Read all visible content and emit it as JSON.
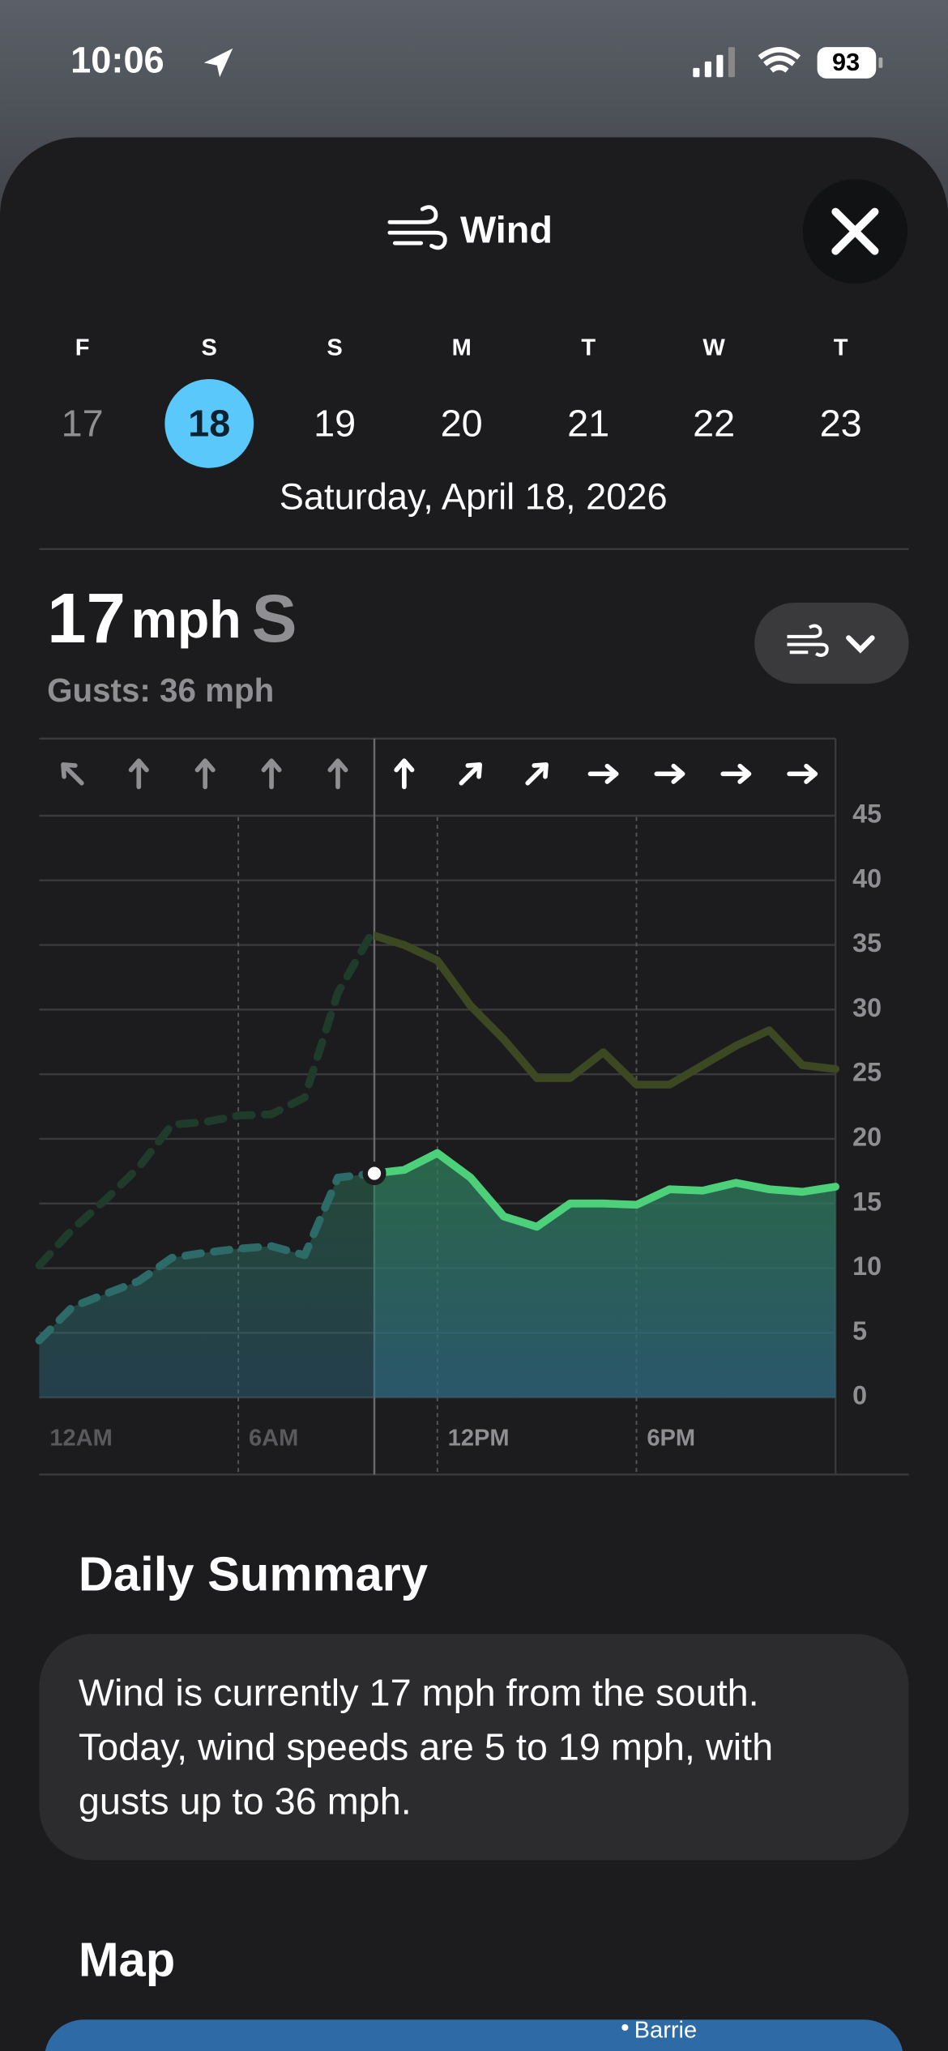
{
  "status_bar": {
    "time": "10:06",
    "battery": "93"
  },
  "header": {
    "title": "Wind"
  },
  "days": [
    {
      "letter": "F",
      "number": "17"
    },
    {
      "letter": "S",
      "number": "18"
    },
    {
      "letter": "S",
      "number": "19"
    },
    {
      "letter": "M",
      "number": "20"
    },
    {
      "letter": "T",
      "number": "21"
    },
    {
      "letter": "W",
      "number": "22"
    },
    {
      "letter": "T",
      "number": "23"
    }
  ],
  "selected_date": "Saturday, April 18, 2026",
  "current": {
    "speed": "17",
    "unit": "mph",
    "direction": "S",
    "gusts": "Gusts: 36 mph"
  },
  "chart_data": {
    "type": "line",
    "x": [
      0,
      1,
      2,
      3,
      4,
      5,
      6,
      7,
      8,
      9,
      10,
      11,
      12,
      13,
      14,
      15,
      16,
      17,
      18,
      19,
      20,
      21,
      22,
      23,
      24
    ],
    "xlim": [
      0,
      24
    ],
    "xticks": [
      {
        "value": 0,
        "label": "12AM"
      },
      {
        "value": 6,
        "label": "6AM"
      },
      {
        "value": 12,
        "label": "12PM"
      },
      {
        "value": 18,
        "label": "6PM"
      }
    ],
    "ylim": [
      0,
      45
    ],
    "yticks": [
      0,
      5,
      10,
      15,
      20,
      25,
      30,
      35,
      40,
      45
    ],
    "grid": true,
    "now": 10.1,
    "arrow_hours": [
      1,
      3,
      5,
      7,
      9,
      11,
      13,
      15,
      17,
      19,
      21,
      23
    ],
    "arrow_angles": [
      -45,
      0,
      0,
      0,
      0,
      0,
      45,
      45,
      90,
      90,
      90,
      90
    ],
    "series": [
      {
        "name": "Wind",
        "color": "#4cd17a",
        "past_color": "#2c6b68",
        "fill": true,
        "values": [
          4.4,
          7,
          8,
          9,
          10.8,
          11.2,
          11.5,
          11.7,
          11,
          17,
          17.3,
          17.6,
          18.9,
          17,
          14,
          13.2,
          15,
          15,
          14.9,
          16.1,
          16,
          16.6,
          16.1,
          15.9,
          16.3
        ]
      },
      {
        "name": "Gusts",
        "color": "#3b4822",
        "past_color": "#1e3b2c",
        "fill": false,
        "values": [
          10.2,
          13,
          15.3,
          17.8,
          21.1,
          21.3,
          21.8,
          21.9,
          23.2,
          31.3,
          35.8,
          35,
          33.8,
          30.3,
          27.7,
          24.7,
          24.7,
          26.7,
          24.2,
          24.2,
          25.7,
          27.2,
          28.4,
          25.7,
          25.4
        ]
      }
    ]
  },
  "summary": {
    "title": "Daily Summary",
    "text_lines": [
      "Wind is currently 17 mph from the south.",
      "Today, wind speeds are 5 to 19 mph, with",
      "gusts up to 36 mph."
    ]
  },
  "map": {
    "title": "Map",
    "place": "Barrie"
  }
}
